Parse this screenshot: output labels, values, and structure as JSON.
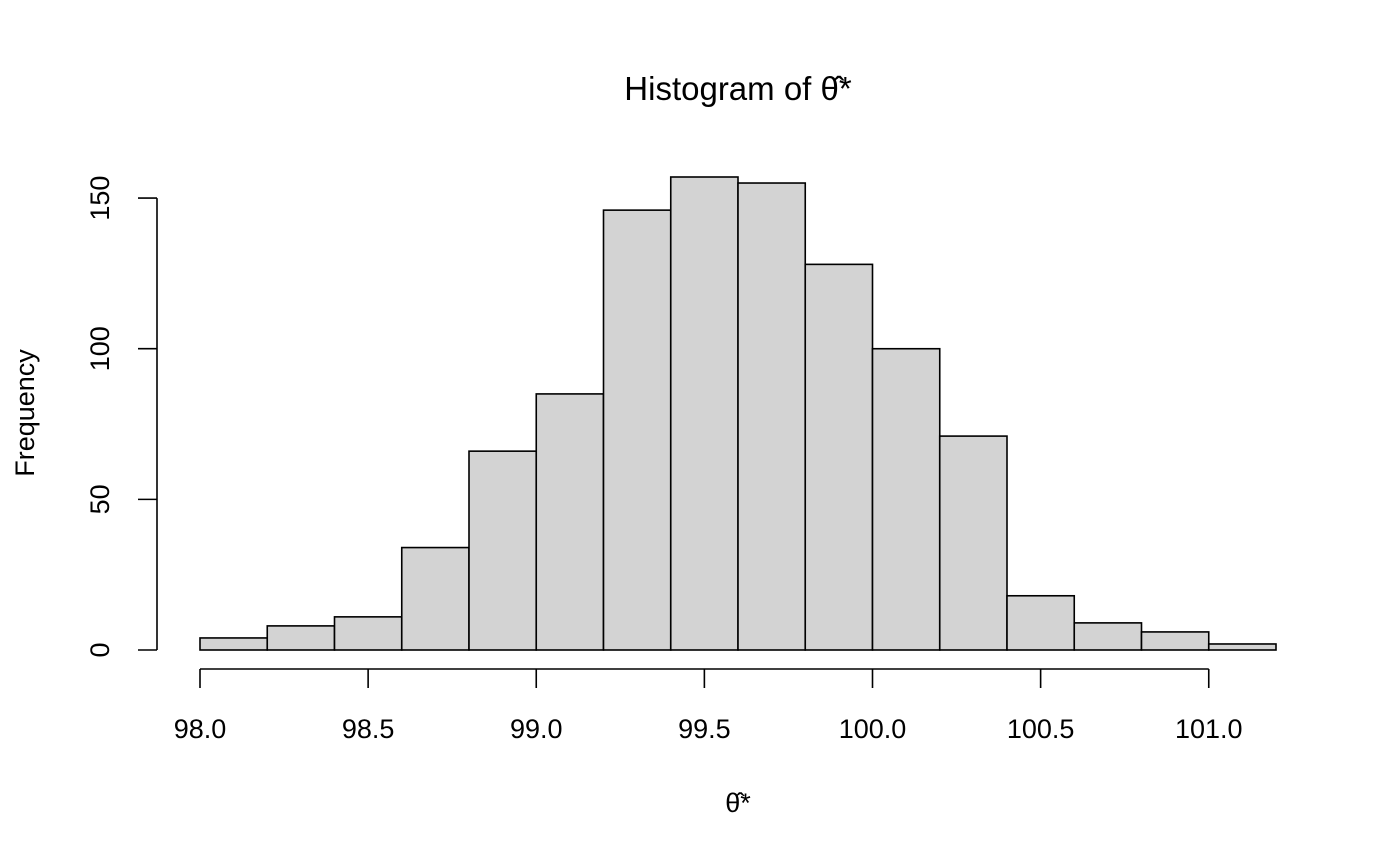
{
  "chart_data": {
    "type": "bar",
    "title": "Histogram of θ̂*",
    "xlabel": "θ̂*",
    "ylabel": "Frequency",
    "bin_edges": [
      98.0,
      98.2,
      98.4,
      98.6,
      98.8,
      99.0,
      99.2,
      99.4,
      99.6,
      99.8,
      100.0,
      100.2,
      100.4,
      100.6,
      100.8,
      101.0,
      101.2
    ],
    "values": [
      4,
      8,
      11,
      34,
      66,
      85,
      146,
      157,
      155,
      128,
      100,
      71,
      18,
      9,
      6,
      2
    ],
    "xticks": [
      98.0,
      98.5,
      99.0,
      99.5,
      100.0,
      100.5,
      101.0
    ],
    "xtick_labels": [
      "98.0",
      "98.5",
      "99.0",
      "99.5",
      "100.0",
      "100.5",
      "101.0"
    ],
    "yticks": [
      0,
      50,
      100,
      150
    ],
    "ytick_labels": [
      "0",
      "50",
      "100",
      "150"
    ],
    "xlim": [
      98.0,
      101.2
    ],
    "ylim": [
      0,
      157
    ],
    "grid": false,
    "colors": {
      "bar_fill": "#d3d3d3",
      "bar_stroke": "#000000"
    }
  }
}
